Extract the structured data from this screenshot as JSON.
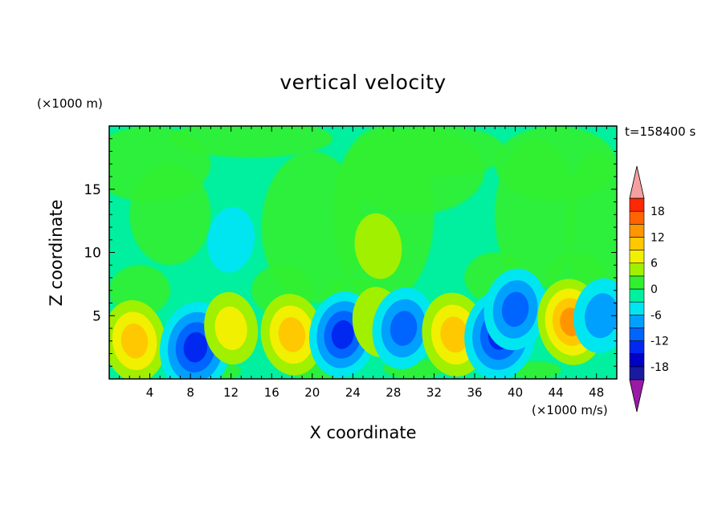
{
  "chart_data": {
    "type": "heatmap",
    "title": "vertical velocity",
    "xlabel": "X coordinate",
    "ylabel": "Z coordinate",
    "x_unit_label": "(×1000 m/s)",
    "y_unit_label": "(×1000 m)",
    "time_label": "t=158400 s",
    "xlim": [
      0,
      50
    ],
    "ylim": [
      0,
      20
    ],
    "x_ticks": [
      4,
      8,
      12,
      16,
      20,
      24,
      28,
      32,
      36,
      40,
      44,
      48
    ],
    "y_ticks": [
      5,
      10,
      15
    ],
    "colorbar": {
      "ticks": [
        18,
        12,
        6,
        0,
        -6,
        -12,
        -18
      ],
      "levels": [
        -21,
        -18,
        -15,
        -12,
        -9,
        -6,
        -3,
        0,
        3,
        6,
        9,
        12,
        15,
        18,
        21
      ],
      "colors": [
        "#5a10a0",
        "#1a1aa0",
        "#0000c8",
        "#0028f0",
        "#0064ff",
        "#00a0ff",
        "#00e6f0",
        "#00f0a0",
        "#30f030",
        "#a0f000",
        "#f0f000",
        "#ffc800",
        "#ff9600",
        "#ff6400",
        "#ff2800",
        "#e00000"
      ],
      "under_color": "#9a1aa8",
      "over_color": "#f4a0a0"
    },
    "features": [
      {
        "x": 2.5,
        "z": 3,
        "value": 10
      },
      {
        "x": 8.5,
        "z": 2.5,
        "value": -14
      },
      {
        "x": 12,
        "z": 4,
        "value": 6
      },
      {
        "x": 18,
        "z": 3.5,
        "value": 10
      },
      {
        "x": 23,
        "z": 3.5,
        "value": -12
      },
      {
        "x": 26.5,
        "z": 4.5,
        "value": 5
      },
      {
        "x": 29,
        "z": 4,
        "value": -10
      },
      {
        "x": 34,
        "z": 3.5,
        "value": 11
      },
      {
        "x": 38.5,
        "z": 3.5,
        "value": -14
      },
      {
        "x": 40,
        "z": 5.5,
        "value": -10
      },
      {
        "x": 45.5,
        "z": 4.5,
        "value": 12
      },
      {
        "x": 48.5,
        "z": 5,
        "value": -7
      },
      {
        "x": 26.5,
        "z": 10.5,
        "value": 3
      },
      {
        "x": 12,
        "z": 11,
        "value": -3
      }
    ]
  }
}
